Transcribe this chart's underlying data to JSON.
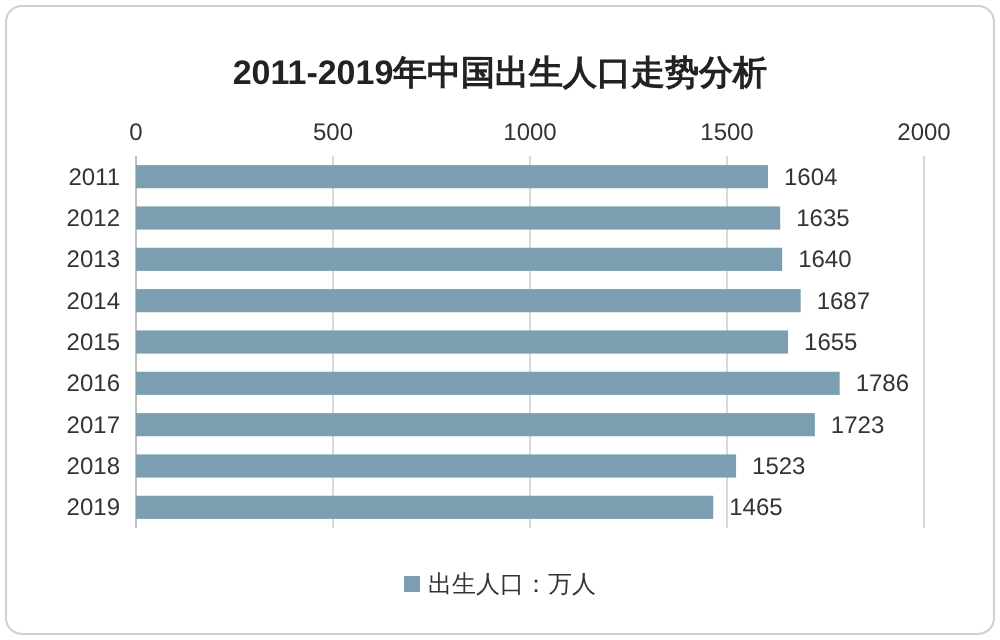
{
  "chart_data": {
    "type": "bar",
    "orientation": "horizontal",
    "title": "2011-2019年中国出生人口走势分析",
    "categories": [
      "2011",
      "2012",
      "2013",
      "2014",
      "2015",
      "2016",
      "2017",
      "2018",
      "2019"
    ],
    "series": [
      {
        "name": "出生人口：万人",
        "color": "#7b9fb1",
        "values": [
          1604,
          1635,
          1640,
          1687,
          1655,
          1786,
          1723,
          1523,
          1465
        ]
      }
    ],
    "xlim": [
      0,
      2000
    ],
    "xticks": [
      0,
      500,
      1000,
      1500,
      2000
    ],
    "grid": "x",
    "data_labels": true,
    "legend": "bottom"
  }
}
